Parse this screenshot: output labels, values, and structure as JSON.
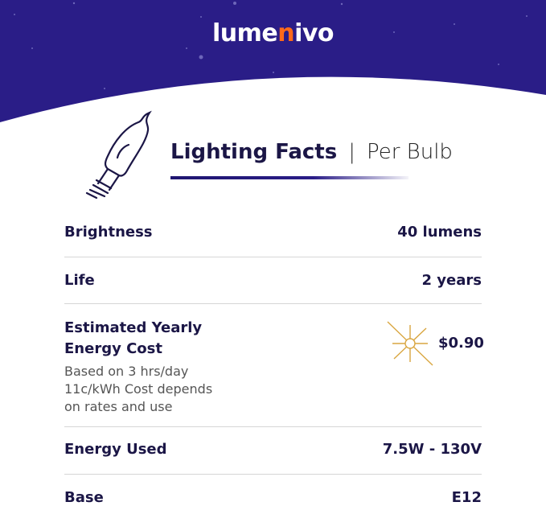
{
  "brand": {
    "logo_text_a": "lume",
    "logo_text_n": "n",
    "logo_text_b": "ivo",
    "banner_color": "#2a1d87",
    "logo_accent": "#ff6a1a"
  },
  "header": {
    "title": "Lighting Facts",
    "separator": "|",
    "subtitle": "Per Bulb",
    "icon": "candle-bulb-icon"
  },
  "facts": {
    "brightness": {
      "label": "Brightness",
      "value": "40 lumens"
    },
    "life": {
      "label": "Life",
      "value": "2 years"
    },
    "cost": {
      "label_line1": "Estimated Yearly",
      "label_line2": "Energy Cost",
      "note_line1": "Based on 3 hrs/day",
      "note_line2": "11c/kWh Cost depends",
      "note_line3": "on rates and use",
      "value": "$0.90",
      "icon": "sparkle-icon"
    },
    "energy": {
      "label": "Energy Used",
      "value": "7.5W - 130V"
    },
    "base": {
      "label": "Base",
      "value": "E12"
    }
  }
}
